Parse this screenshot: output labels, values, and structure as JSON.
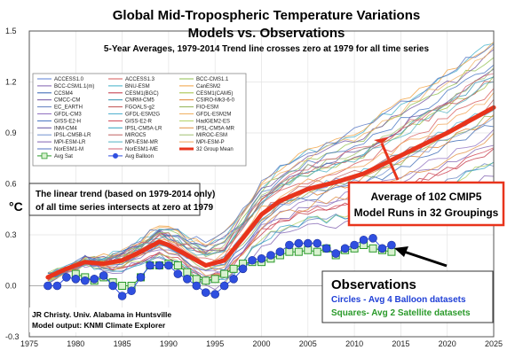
{
  "chart_data": {
    "type": "line",
    "title": "Global Mid-Tropospheric Temperature Variations",
    "subtitle": "Models vs. Observations",
    "subtitle2": "5-Year Averages, 1979-2014 Trend line crosses zero at 1979 for all time series",
    "ylabel": "°C",
    "xlim": [
      1975,
      2025
    ],
    "ylim": [
      -0.3,
      1.5
    ],
    "x_ticks": [
      1975,
      1980,
      1985,
      1990,
      1995,
      2000,
      2005,
      2010,
      2015,
      2020,
      2025
    ],
    "y_ticks": [
      -0.3,
      0.0,
      0.3,
      0.6,
      0.9,
      1.2,
      1.5
    ],
    "y_tick_labels": [
      "-0.3",
      "0.0",
      "0.3",
      "0.6",
      "0.9",
      "1.2",
      "1.5"
    ],
    "grid": true,
    "legend_position": "top-left",
    "legend": [
      {
        "name": "ACCESS1.0",
        "color": "#5b7fd4"
      },
      {
        "name": "ACCESS1.3",
        "color": "#d65a5a"
      },
      {
        "name": "BCC-CMS1.1",
        "color": "#8fbf4f"
      },
      {
        "name": "BCC-CSM1.1(m)",
        "color": "#8060b0"
      },
      {
        "name": "BNU-ESM",
        "color": "#40b0c8"
      },
      {
        "name": "CanESM2",
        "color": "#f0a040"
      },
      {
        "name": "CCSM4",
        "color": "#3060b0"
      },
      {
        "name": "CESM1(BGC)",
        "color": "#c03040"
      },
      {
        "name": "CESM1(CAM5)",
        "color": "#a0c040"
      },
      {
        "name": "CMCC-CM",
        "color": "#7050a0"
      },
      {
        "name": "CNRM-CM5",
        "color": "#3090b0"
      },
      {
        "name": "CSIRO-Mk3-6-0",
        "color": "#e08030"
      },
      {
        "name": "EC_EARTH",
        "color": "#6080c0"
      },
      {
        "name": "FGOALS-g2",
        "color": "#c05050"
      },
      {
        "name": "FIO-ESM",
        "color": "#90b050"
      },
      {
        "name": "GFDL-CM3",
        "color": "#9070c0"
      },
      {
        "name": "GFDL-ESM2G",
        "color": "#50b0d0"
      },
      {
        "name": "GFDL-ESM2M",
        "color": "#f0b060"
      },
      {
        "name": "GISS-E2-H",
        "color": "#4070c0"
      },
      {
        "name": "GISS-E2-R",
        "color": "#d04050"
      },
      {
        "name": "HadGEM2-ES",
        "color": "#b0d060"
      },
      {
        "name": "INM-CM4",
        "color": "#6050a0"
      },
      {
        "name": "IPSL-CM5A-LR",
        "color": "#30a0c0"
      },
      {
        "name": "IPSL-CM5A-MR",
        "color": "#e09040"
      },
      {
        "name": "IPSL-CM5B-LR",
        "color": "#7090d0"
      },
      {
        "name": "MIROC5",
        "color": "#c06060"
      },
      {
        "name": "MIROC-ESM",
        "color": "#a0c070"
      },
      {
        "name": "MPI-ESM-LR",
        "color": "#8060b0"
      },
      {
        "name": "MPI-ESM-MR",
        "color": "#50b0c0"
      },
      {
        "name": "MPI-ESM-P",
        "color": "#f0a050"
      },
      {
        "name": "NorESM1-M",
        "color": "#5070c0"
      },
      {
        "name": "NorESM1-ME",
        "color": "#d06070"
      },
      {
        "name": "32 Group Mean",
        "color": "#e8341c"
      },
      {
        "name": "Avg Sat",
        "color": "#2a9a2a"
      },
      {
        "name": "Avg Balloon",
        "color": "#2f4fe0"
      }
    ],
    "series": [
      {
        "name": "32 Group Mean",
        "color": "#e8341c",
        "x": [
          1977,
          1979,
          1981,
          1983,
          1985,
          1987,
          1989,
          1990,
          1992,
          1994,
          1996,
          1998,
          2000,
          2002,
          2005,
          2008,
          2011,
          2014,
          2017,
          2020,
          2023,
          2025
        ],
        "y": [
          0.05,
          0.1,
          0.14,
          0.13,
          0.15,
          0.2,
          0.26,
          0.24,
          0.18,
          0.12,
          0.15,
          0.28,
          0.42,
          0.5,
          0.57,
          0.61,
          0.66,
          0.74,
          0.82,
          0.9,
          0.99,
          1.05
        ]
      },
      {
        "name": "Avg Balloon",
        "color": "#2f4fe0",
        "x": [
          1977,
          1978,
          1979,
          1980,
          1981,
          1982,
          1983,
          1984,
          1985,
          1986,
          1987,
          1988,
          1989,
          1990,
          1991,
          1992,
          1993,
          1994,
          1995,
          1996,
          1997,
          1998,
          1999,
          2000,
          2001,
          2002,
          2003,
          2004,
          2005,
          2006,
          2007,
          2008,
          2009,
          2010,
          2011,
          2012,
          2013,
          2014
        ],
        "y": [
          0.0,
          0.0,
          0.05,
          0.04,
          0.03,
          0.04,
          0.06,
          0.0,
          -0.06,
          -0.03,
          0.05,
          0.12,
          0.12,
          0.12,
          0.07,
          0.04,
          0.0,
          -0.04,
          -0.05,
          0.0,
          0.04,
          0.1,
          0.15,
          0.16,
          0.18,
          0.2,
          0.24,
          0.25,
          0.25,
          0.25,
          0.22,
          0.19,
          0.22,
          0.24,
          0.27,
          0.28,
          0.22,
          0.24
        ]
      },
      {
        "name": "Avg Sat",
        "color": "#2a9a2a",
        "x": [
          1980,
          1981,
          1982,
          1983,
          1984,
          1985,
          1986,
          1987,
          1988,
          1989,
          1990,
          1991,
          1992,
          1993,
          1994,
          1995,
          1996,
          1997,
          1998,
          1999,
          2000,
          2001,
          2002,
          2003,
          2004,
          2005,
          2006,
          2007,
          2008,
          2009,
          2010,
          2011,
          2012,
          2013,
          2014
        ],
        "y": [
          0.07,
          0.05,
          0.03,
          0.05,
          0.02,
          0.0,
          0.0,
          0.05,
          0.12,
          0.12,
          0.13,
          0.12,
          0.08,
          0.04,
          0.03,
          0.04,
          0.07,
          0.1,
          0.13,
          0.14,
          0.14,
          0.16,
          0.18,
          0.2,
          0.2,
          0.21,
          0.2,
          0.22,
          0.18,
          0.21,
          0.22,
          0.24,
          0.22,
          0.21,
          0.2
        ]
      }
    ],
    "annotations": {
      "trend_note": [
        "The linear trend (based on 1979-2014 only)",
        "of all time series intersects at zero at 1979"
      ],
      "model_box": [
        "Average of 102 CMIP5",
        "Model Runs in 32 Groupings"
      ],
      "obs_title": "Observations",
      "obs_circles": "Circles - Avg 4 Balloon datasets",
      "obs_squares": "Squares- Avg 2 Satellite datasets",
      "credit": [
        "JR Christy. Univ. Alabama in Huntsville",
        "Model output: KNMI Climate Explorer"
      ]
    }
  }
}
